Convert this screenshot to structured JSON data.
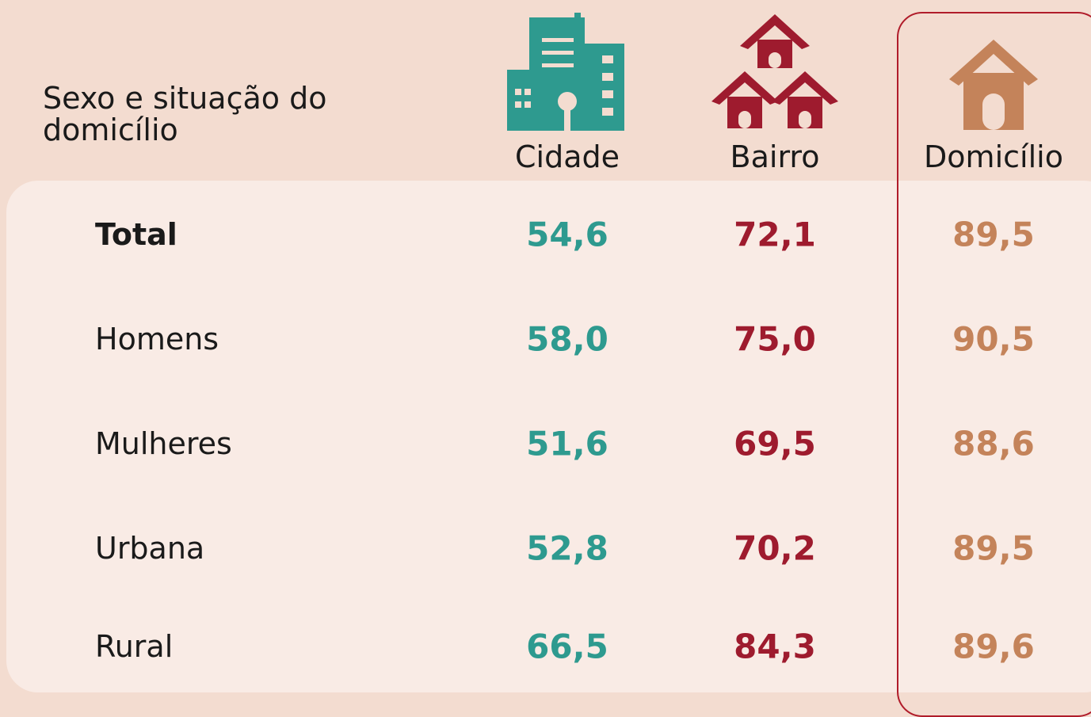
{
  "header": {
    "title": "Sexo e situação do domicílio",
    "columns": [
      "Cidade",
      "Bairro",
      "Domicílio"
    ]
  },
  "table": {
    "rows": [
      {
        "label": "Total",
        "values": [
          "54,6",
          "72,1",
          "89,5"
        ]
      },
      {
        "label": "Homens",
        "values": [
          "58,0",
          "75,0",
          "90,5"
        ]
      },
      {
        "label": "Mulheres",
        "values": [
          "51,6",
          "69,5",
          "88,6"
        ]
      },
      {
        "label": "Urbana",
        "values": [
          "52,8",
          "70,2",
          "89,5"
        ]
      },
      {
        "label": "Rural",
        "values": [
          "66,5",
          "84,3",
          "89,6"
        ]
      }
    ]
  }
}
